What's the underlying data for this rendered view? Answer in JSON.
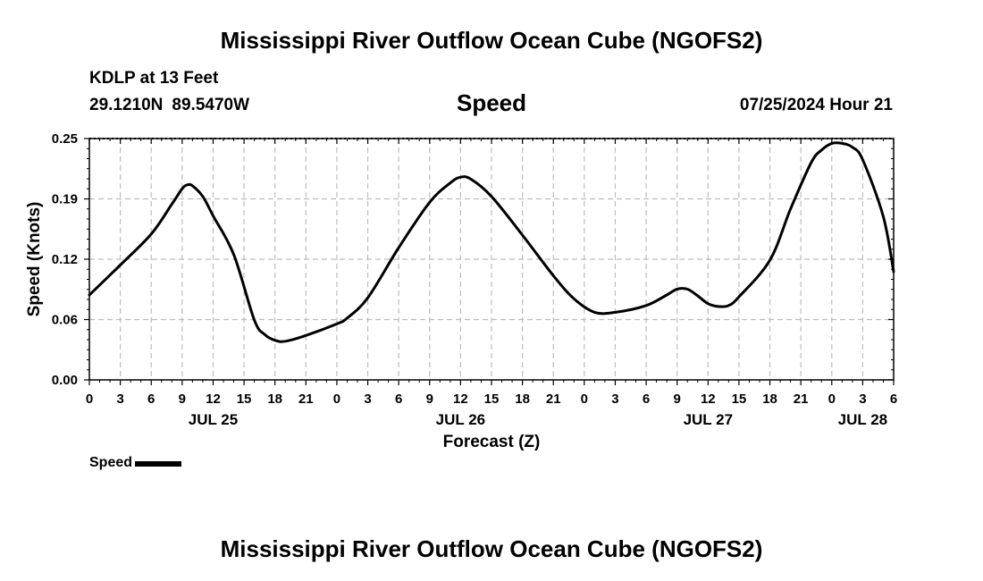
{
  "header": {
    "title": "Mississippi River Outflow Ocean Cube (NGOFS2)",
    "station": "KDLP at 13 Feet",
    "latitude": "29.1210N",
    "longitude": "89.5470W",
    "variable": "Speed",
    "datetime": "07/25/2024 Hour 21"
  },
  "footer": {
    "title": "Mississippi River Outflow Ocean Cube (NGOFS2)"
  },
  "legend": {
    "label": "Speed",
    "color": "#000000"
  },
  "chart_data": {
    "type": "line",
    "title": "Speed",
    "xlabel": "Forecast (Z)",
    "ylabel": "Speed (Knots)",
    "x_unit": "hours since 07/25 00Z",
    "xlim": [
      0,
      78
    ],
    "ylim": [
      0,
      0.25
    ],
    "yticks": [
      "0.00",
      "0.06",
      "0.12",
      "0.19",
      "0.25"
    ],
    "ytick_values": [
      0,
      0.0625,
      0.125,
      0.1875,
      0.25
    ],
    "xticks": [
      {
        "x": 0,
        "label": "0"
      },
      {
        "x": 3,
        "label": "3"
      },
      {
        "x": 6,
        "label": "6"
      },
      {
        "x": 9,
        "label": "9"
      },
      {
        "x": 12,
        "label": "12"
      },
      {
        "x": 15,
        "label": "15"
      },
      {
        "x": 18,
        "label": "18"
      },
      {
        "x": 21,
        "label": "21"
      },
      {
        "x": 24,
        "label": "0"
      },
      {
        "x": 27,
        "label": "3"
      },
      {
        "x": 30,
        "label": "6"
      },
      {
        "x": 33,
        "label": "9"
      },
      {
        "x": 36,
        "label": "12"
      },
      {
        "x": 39,
        "label": "15"
      },
      {
        "x": 42,
        "label": "18"
      },
      {
        "x": 45,
        "label": "21"
      },
      {
        "x": 48,
        "label": "0"
      },
      {
        "x": 51,
        "label": "3"
      },
      {
        "x": 54,
        "label": "6"
      },
      {
        "x": 57,
        "label": "9"
      },
      {
        "x": 60,
        "label": "12"
      },
      {
        "x": 63,
        "label": "15"
      },
      {
        "x": 66,
        "label": "18"
      },
      {
        "x": 69,
        "label": "21"
      },
      {
        "x": 72,
        "label": "0"
      },
      {
        "x": 75,
        "label": "3"
      },
      {
        "x": 78,
        "label": "6"
      }
    ],
    "day_labels": [
      {
        "x": 12,
        "label": "JUL 25"
      },
      {
        "x": 36,
        "label": "JUL 26"
      },
      {
        "x": 60,
        "label": "JUL 27"
      },
      {
        "x": 75,
        "label": "JUL 28"
      }
    ],
    "grid": true,
    "legend_position": "bottom-left",
    "series": [
      {
        "name": "Speed",
        "color": "#000000",
        "points": [
          [
            0,
            0.088
          ],
          [
            3,
            0.119
          ],
          [
            6,
            0.151
          ],
          [
            8,
            0.182
          ],
          [
            9,
            0.198
          ],
          [
            9.5,
            0.202
          ],
          [
            10,
            0.201
          ],
          [
            11,
            0.19
          ],
          [
            12,
            0.17
          ],
          [
            14,
            0.13
          ],
          [
            16,
            0.062
          ],
          [
            17,
            0.047
          ],
          [
            18,
            0.041
          ],
          [
            19,
            0.04
          ],
          [
            21,
            0.046
          ],
          [
            24,
            0.058
          ],
          [
            25,
            0.064
          ],
          [
            27,
            0.085
          ],
          [
            30,
            0.137
          ],
          [
            33,
            0.184
          ],
          [
            35,
            0.204
          ],
          [
            36,
            0.21
          ],
          [
            37,
            0.208
          ],
          [
            39,
            0.19
          ],
          [
            42,
            0.15
          ],
          [
            45,
            0.108
          ],
          [
            47,
            0.084
          ],
          [
            49,
            0.07
          ],
          [
            51,
            0.07
          ],
          [
            54,
            0.077
          ],
          [
            56,
            0.088
          ],
          [
            57,
            0.094
          ],
          [
            58,
            0.094
          ],
          [
            59,
            0.087
          ],
          [
            60,
            0.079
          ],
          [
            61,
            0.076
          ],
          [
            62,
            0.077
          ],
          [
            63,
            0.086
          ],
          [
            66,
            0.124
          ],
          [
            68,
            0.177
          ],
          [
            70,
            0.225
          ],
          [
            71,
            0.238
          ],
          [
            72,
            0.245
          ],
          [
            73,
            0.245
          ],
          [
            74,
            0.241
          ],
          [
            75,
            0.228
          ],
          [
            77,
            0.169
          ],
          [
            78,
            0.112
          ]
        ]
      }
    ]
  }
}
